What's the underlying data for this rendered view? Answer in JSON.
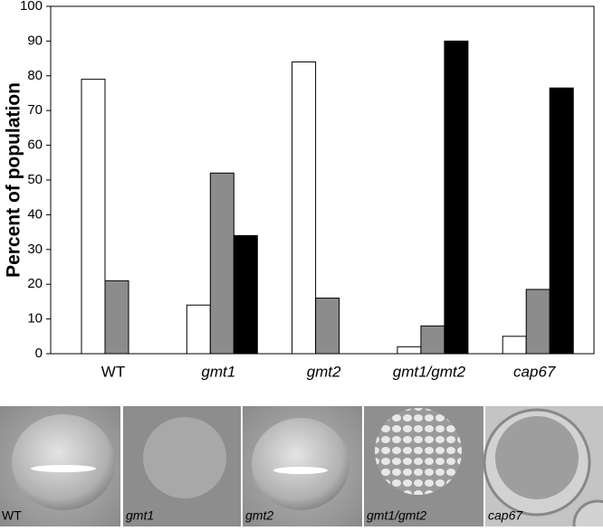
{
  "chart_data": {
    "type": "bar",
    "y_label": "Percent of population",
    "categories": [
      "WT",
      "gmt1",
      "gmt2",
      "gmt1/gmt2",
      "cap67"
    ],
    "series": [
      {
        "color": "#ffffff",
        "values": [
          79,
          14,
          84,
          2,
          5
        ]
      },
      {
        "color": "#8c8c8c",
        "values": [
          21,
          52,
          16,
          8,
          18.5
        ]
      },
      {
        "color": "#000000",
        "values": [
          0,
          34,
          0,
          90,
          76.5
        ]
      }
    ],
    "ylim": [
      0,
      100
    ],
    "yticks": [
      0,
      10,
      20,
      30,
      40,
      50,
      60,
      70,
      80,
      90,
      100
    ]
  },
  "panels": [
    "WT",
    "gmt1",
    "gmt2",
    "gmt1/gmt2",
    "cap67"
  ]
}
